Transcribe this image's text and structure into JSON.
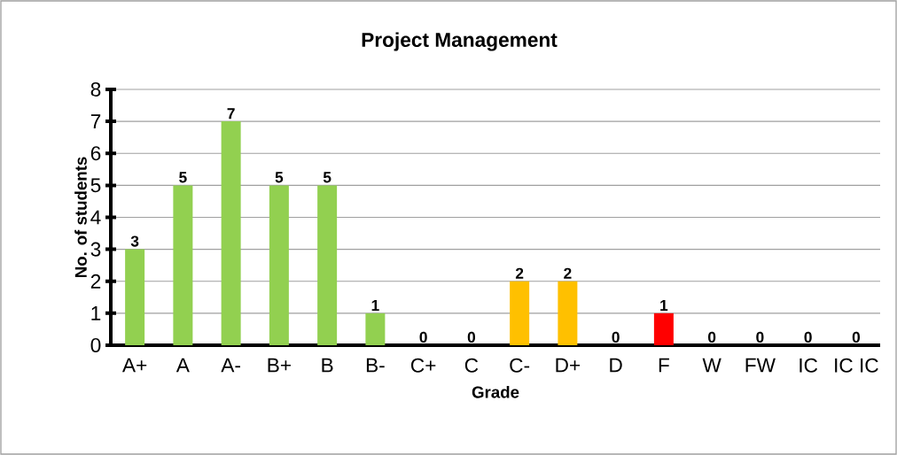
{
  "chart_data": {
    "type": "bar",
    "title": "Project Management",
    "xlabel": "Grade",
    "ylabel": "No. of students",
    "categories": [
      "A+",
      "A",
      "A-",
      "B+",
      "B",
      "B-",
      "C+",
      "C",
      "C-",
      "D+",
      "D",
      "F",
      "W",
      "FW",
      "IC",
      "IC IC"
    ],
    "values": [
      3,
      5,
      7,
      5,
      5,
      1,
      0,
      0,
      2,
      2,
      0,
      1,
      0,
      0,
      0,
      0
    ],
    "colors": [
      "#92d050",
      "#92d050",
      "#92d050",
      "#92d050",
      "#92d050",
      "#92d050",
      "#92d050",
      "#92d050",
      "#ffc000",
      "#ffc000",
      "#ffc000",
      "#ff0000",
      "#ff0000",
      "#ff0000",
      "#ff0000",
      "#ff0000"
    ],
    "ylim": [
      0,
      8
    ],
    "yticks": [
      0,
      1,
      2,
      3,
      4,
      5,
      6,
      7,
      8
    ],
    "grid": "y",
    "data_labels": true
  }
}
